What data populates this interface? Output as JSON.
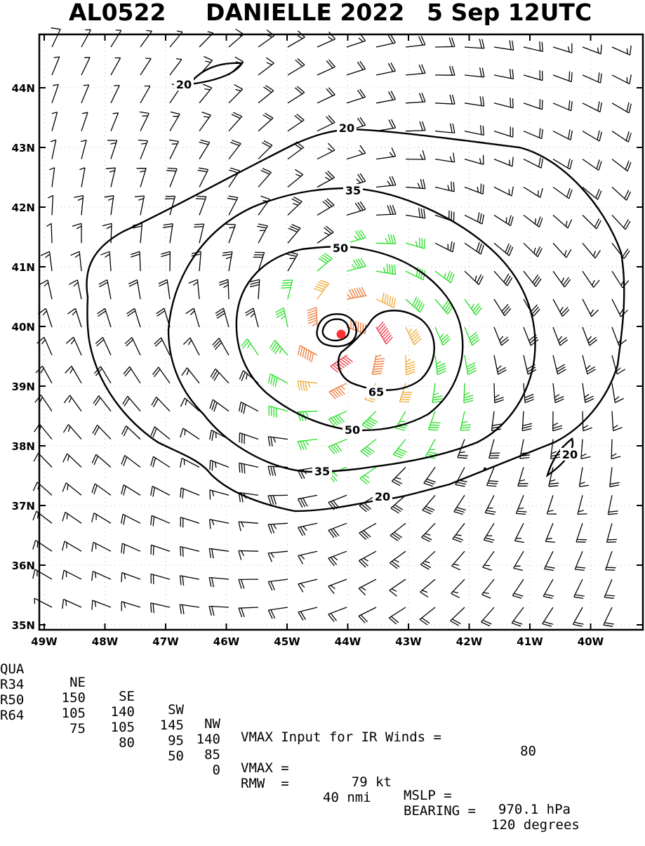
{
  "title": {
    "storm_id": "AL0522",
    "storm_name": "DANIELLE 2022",
    "datetime": "5 Sep 12UTC"
  },
  "map": {
    "lat_labels": [
      "35N",
      "36N",
      "37N",
      "38N",
      "39N",
      "40N",
      "41N",
      "42N",
      "43N",
      "44N"
    ],
    "lon_labels": [
      "49W",
      "48W",
      "47W",
      "46W",
      "45W",
      "44W",
      "43W",
      "42W",
      "41W",
      "40W"
    ],
    "contour_labels": [
      "20",
      "20",
      "20",
      "20",
      "35",
      "35",
      "50",
      "50",
      "65"
    ],
    "colors": {
      "below_34kt": "#000000",
      "kt34_50": "#22dd22",
      "kt50_64": "#eeaa33",
      "kt64_80": "#ee7733",
      "above_80": "#ee3344",
      "center_marker": "#ff3333"
    }
  },
  "footer": {
    "header": [
      "QUA",
      "NE",
      "SE",
      "SW",
      "NW"
    ],
    "rows": [
      {
        "label": "R34",
        "values": [
          "150",
          "140",
          "145",
          "140"
        ]
      },
      {
        "label": "R50",
        "values": [
          "105",
          "105",
          "95",
          "85"
        ]
      },
      {
        "label": "R64",
        "values": [
          "75",
          "80",
          "50",
          "0"
        ]
      }
    ],
    "vmax_input_text": "VMAX Input for IR Winds =",
    "vmax_input_value": "80",
    "vmax_label": "VMAX =",
    "vmax_value": "79 kt",
    "mslp_label": "MSLP =",
    "mslp_value": "970.1 hPa",
    "rmw_label": "RMW  =",
    "rmw_value": "40 nmi",
    "bearing_label": "BEARING =",
    "bearing_value": "120 degrees"
  }
}
